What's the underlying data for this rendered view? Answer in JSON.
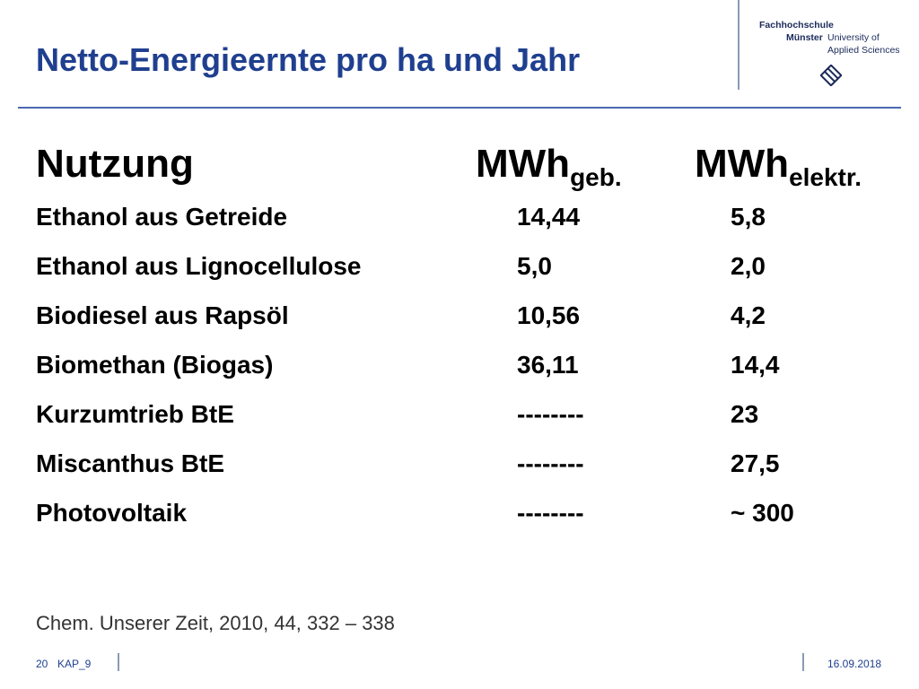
{
  "slide": {
    "title": "Netto-Energieernte pro ha und Jahr"
  },
  "logo": {
    "line1": "Fachhochschule",
    "line2": "Münster",
    "line3": "University of",
    "line4": "Applied Sciences",
    "icon": "fh-muenster-logo-mark"
  },
  "table": {
    "headers": {
      "col1": "Nutzung",
      "col2_main": "MWh",
      "col2_sub": "geb.",
      "col3_main": "MWh",
      "col3_sub": "elektr."
    },
    "rows": [
      {
        "name": "Ethanol aus Getreide",
        "geb": "14,44",
        "elektr": "5,8"
      },
      {
        "name": "Ethanol aus Lignocellulose",
        "geb": "5,0",
        "elektr": "2,0"
      },
      {
        "name": "Biodiesel aus Rapsöl",
        "geb": "10,56",
        "elektr": "4,2"
      },
      {
        "name": "Biomethan (Biogas)",
        "geb": "36,11",
        "elektr": "14,4"
      },
      {
        "name": "Kurzumtrieb BtE",
        "geb": "--------",
        "elektr": "23"
      },
      {
        "name": "Miscanthus BtE",
        "geb": "--------",
        "elektr": "27,5"
      },
      {
        "name": "Photovoltaik",
        "geb": "--------",
        "elektr": "~ 300"
      }
    ]
  },
  "citation": "Chem. Unserer Zeit, 2010, 44, 332 – 338",
  "footer": {
    "page": "20",
    "chapter": "KAP_9",
    "date": "16.09.2018"
  },
  "colors": {
    "title": "#1f3f8f",
    "rule": "#4a6ab0"
  }
}
